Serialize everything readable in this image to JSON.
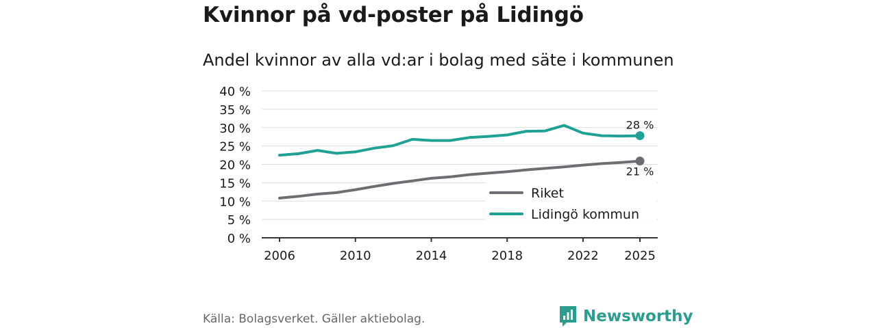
{
  "header": {
    "title": "Kvinnor på vd-poster på Lidingö",
    "subtitle": "Andel kvinnor av alla vd:ar i bolag med säte i kommunen"
  },
  "footer": {
    "source": "Källa: Bolagsverket. Gäller aktiebolag.",
    "brand": "Newsworthy"
  },
  "colors": {
    "riket": "#6e6d73",
    "lidingo": "#20a195",
    "grid": "#dddddd",
    "brand": "#2a9d8f"
  },
  "chart_data": {
    "type": "line",
    "title": "Andel kvinnor av alla vd:ar i bolag med säte i kommunen",
    "xlabel": "",
    "ylabel": "",
    "x": [
      2006,
      2007,
      2008,
      2009,
      2010,
      2011,
      2012,
      2013,
      2014,
      2015,
      2016,
      2017,
      2018,
      2019,
      2020,
      2021,
      2022,
      2023,
      2024,
      2025
    ],
    "xticks": [
      2006,
      2010,
      2014,
      2018,
      2022,
      2025
    ],
    "xtick_labels": [
      "2006",
      "2010",
      "2014",
      "2018",
      "2022",
      "2025"
    ],
    "ylim": [
      0,
      40
    ],
    "yticks": [
      0,
      5,
      10,
      15,
      20,
      25,
      30,
      35,
      40
    ],
    "ytick_labels": [
      "0 %",
      "5 %",
      "10 %",
      "15 %",
      "20 %",
      "25 %",
      "30 %",
      "35 %",
      "40 %"
    ],
    "grid": true,
    "legend_position": "bottom-right",
    "series": [
      {
        "name": "Riket",
        "color": "#6e6d73",
        "values": [
          10.8,
          11.3,
          11.9,
          12.3,
          13.1,
          14.0,
          14.8,
          15.5,
          16.2,
          16.6,
          17.2,
          17.6,
          18.0,
          18.5,
          18.9,
          19.3,
          19.8,
          20.2,
          20.5,
          20.9
        ],
        "end_label": "21 %"
      },
      {
        "name": "Lidingö kommun",
        "color": "#20a195",
        "values": [
          22.5,
          22.9,
          23.8,
          23.0,
          23.4,
          24.4,
          25.1,
          26.8,
          26.5,
          26.5,
          27.3,
          27.6,
          28.0,
          29.0,
          29.1,
          30.6,
          28.5,
          27.8,
          27.7,
          27.8
        ],
        "end_label": "28 %"
      }
    ]
  }
}
